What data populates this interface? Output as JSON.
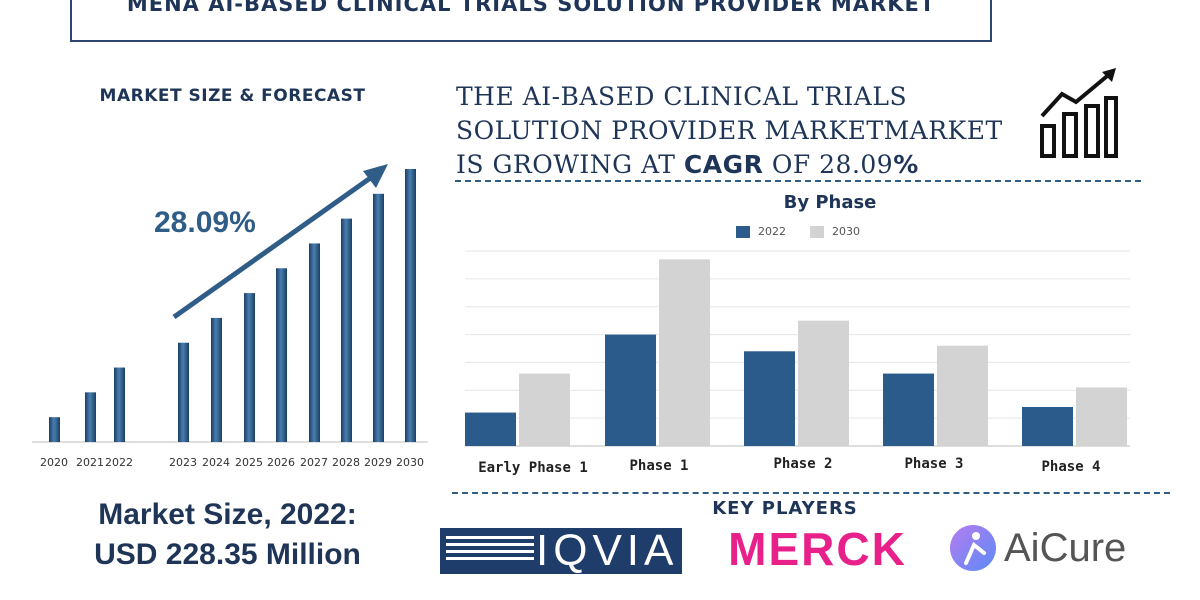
{
  "header": {
    "title": "MENA AI-BASED CLINICAL TRIALS SOLUTION PROVIDER MARKET"
  },
  "left_panel": {
    "label": "MARKET SIZE & FORECAST",
    "cagr_label": "28.09%",
    "market_size_line1": "Market Size, 2022:",
    "market_size_line2": "USD 228.35 Million"
  },
  "headline": {
    "line1": "THE AI-BASED CLINICAL TRIALS",
    "line2": "SOLUTION PROVIDER MARKETMARKET",
    "line3_pre": "IS GROWING AT ",
    "line3_cagr": "CAGR",
    "line3_mid": " OF 28.09",
    "line3_pct": "%"
  },
  "key_players": {
    "label": "KEY PLAYERS",
    "logos": [
      "IQVIA",
      "MERCK",
      "AiCure"
    ]
  },
  "icons": [
    "growth-chart-icon",
    "trend-arrow-icon"
  ],
  "colors": {
    "navy": "#1e3557",
    "bar_blue": "#2b5b8a",
    "bar_grey": "#d3d3d3",
    "merck_pink": "#e8218a"
  },
  "chart_data": [
    {
      "type": "bar",
      "categories": [
        "2020",
        "2021",
        "2022",
        "2023",
        "2024",
        "2025",
        "2026",
        "2027",
        "2028",
        "2029",
        "2030"
      ],
      "values": [
        25,
        50,
        75,
        100,
        125,
        150,
        175,
        200,
        225,
        250,
        275
      ],
      "ylim": [
        0,
        280
      ],
      "grid": false,
      "legend": "none"
    },
    {
      "type": "bar",
      "title": "By Phase",
      "categories": [
        "Early Phase 1",
        "Phase 1",
        "Phase 2",
        "Phase 3",
        "Phase 4"
      ],
      "series": [
        {
          "name": "2022",
          "values": [
            12,
            40,
            34,
            26,
            14
          ]
        },
        {
          "name": "2030",
          "values": [
            26,
            67,
            45,
            36,
            21
          ]
        }
      ],
      "ylim": [
        0,
        70
      ],
      "grid": true,
      "legend": "top-center"
    }
  ]
}
